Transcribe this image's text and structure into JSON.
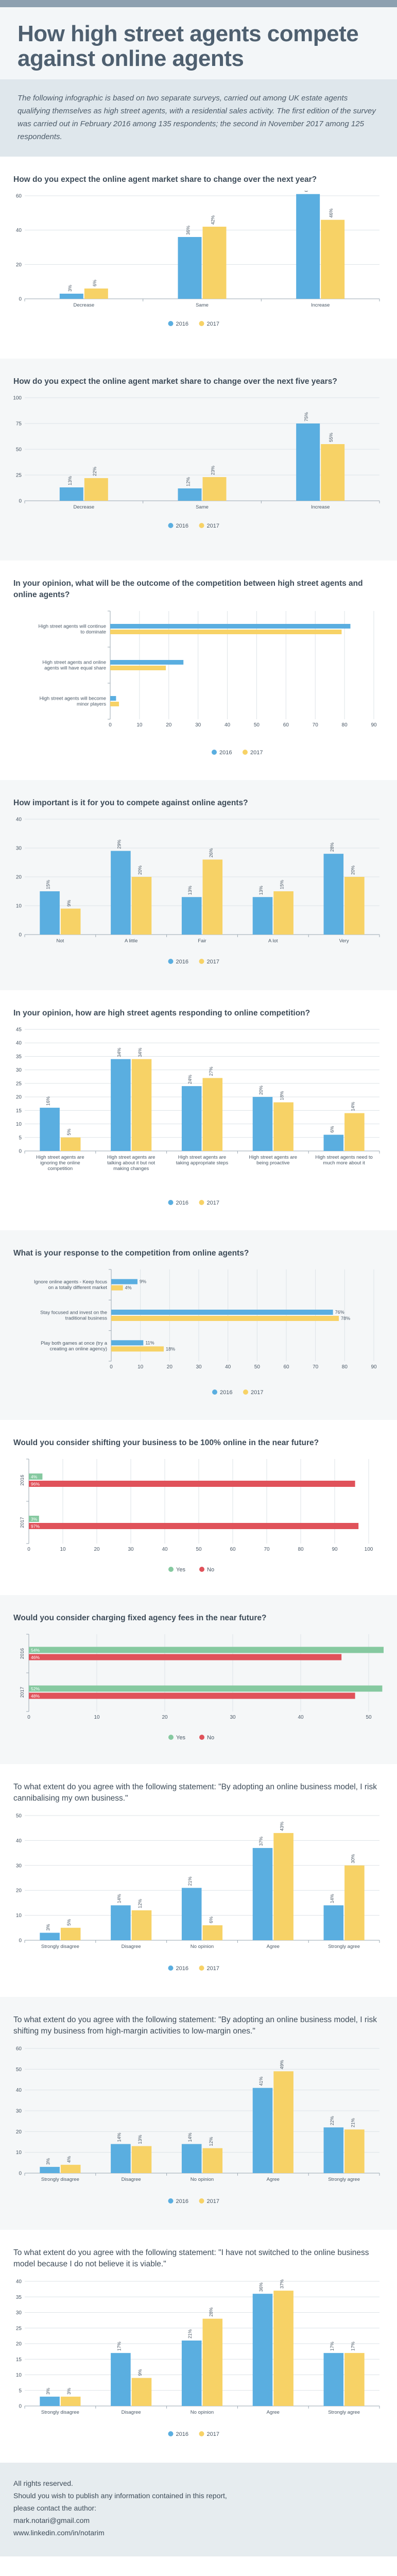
{
  "header": {
    "title": "How high street agents compete against online agents",
    "intro": "The following infographic is based on two separate surveys, carried out among UK estate agents qualifying themselves as high street agents, with a residential sales activity. The first edition of the survey was carried out in February 2016 among 135 respondents; the second in November 2017 among 125 respondents."
  },
  "legend_labels": {
    "y2016": "2016",
    "y2017": "2017",
    "yes": "Yes",
    "no": "No"
  },
  "colors": {
    "y2016": "#5aaee0",
    "y2017": "#f7d266",
    "yes": "#86c9a0",
    "no": "#e0525a",
    "grid": "#dde3e7",
    "axis": "#9aa7b2",
    "text": "#4a5866"
  },
  "footer": {
    "lines": [
      "All rights reserved.",
      "Should you wish to publish any information contained in this report,",
      "please contact the author:",
      "mark.notari@gmail.com",
      "www.linkedin.com/in/notarim"
    ]
  },
  "chart_data": [
    {
      "type": "bar",
      "title": "How do you expect the online agent market share to change over the next year?",
      "categories": [
        "Decrease",
        "Same",
        "Increase"
      ],
      "series": [
        {
          "name": "2016",
          "values": [
            3,
            36,
            61
          ]
        },
        {
          "name": "2017",
          "values": [
            6,
            42,
            46
          ]
        }
      ],
      "labels": [
        [
          "3%",
          "36%",
          "61%"
        ],
        [
          "6%",
          "42%",
          "46%"
        ]
      ],
      "ylim": [
        0,
        60
      ],
      "yticks": [
        0,
        20,
        40,
        60
      ]
    },
    {
      "type": "bar",
      "title": "How do you expect the online agent market share to change over the next five years?",
      "categories": [
        "Decrease",
        "Same",
        "Increase"
      ],
      "series": [
        {
          "name": "2016",
          "values": [
            13,
            12,
            75
          ]
        },
        {
          "name": "2017",
          "values": [
            22,
            23,
            55
          ]
        }
      ],
      "labels": [
        [
          "13%",
          "12%",
          "75%"
        ],
        [
          "22%",
          "23%",
          "55%"
        ]
      ],
      "ylim": [
        0,
        100
      ],
      "yticks": [
        0,
        25,
        50,
        75,
        100
      ]
    },
    {
      "type": "hbar",
      "title": "In your opinion, what will be the outcome of the competition between high street agents and online agents?",
      "categories": [
        "High street agents will continue to dominate",
        "High street agents and online agents will have equal share",
        "High street agents will become minor players"
      ],
      "series": [
        {
          "name": "2016",
          "values": [
            82,
            25,
            2
          ]
        },
        {
          "name": "2017",
          "values": [
            79,
            19,
            3
          ]
        }
      ],
      "xlim": [
        0,
        90
      ],
      "xticks": [
        0,
        10,
        20,
        30,
        40,
        50,
        60,
        70,
        80,
        90
      ]
    },
    {
      "type": "bar",
      "title": "How important is it for you to compete against online agents?",
      "categories": [
        "Not",
        "A little",
        "Fair",
        "A lot",
        "Very"
      ],
      "series": [
        {
          "name": "2016",
          "values": [
            15,
            29,
            13,
            13,
            28
          ]
        },
        {
          "name": "2017",
          "values": [
            9,
            20,
            26,
            15,
            20
          ]
        }
      ],
      "labels": [
        [
          "15%",
          "29%",
          "13%",
          "13%",
          "28%"
        ],
        [
          "9%",
          "20%",
          "26%",
          "15%",
          "20%"
        ]
      ],
      "ylim": [
        0,
        40
      ],
      "yticks": [
        0,
        10,
        20,
        30,
        40
      ]
    },
    {
      "type": "bar",
      "title": "In your opinion, how are high street agents responding to online competition?",
      "categories": [
        "High street agents are ignoring the online competition",
        "High street agents are talking about it but not making changes",
        "High street agents are taking appropriate steps",
        "High street agents are being proactive",
        "High street agents need to much more about it"
      ],
      "series": [
        {
          "name": "2016",
          "values": [
            16,
            34,
            24,
            20,
            6
          ]
        },
        {
          "name": "2017",
          "values": [
            5,
            34,
            27,
            18,
            14
          ]
        }
      ],
      "labels": [
        [
          "16%",
          "34%",
          "24%",
          "20%",
          "6%"
        ],
        [
          "5%",
          "34%",
          "27%",
          "18%",
          "14%"
        ]
      ],
      "ylim": [
        0,
        45
      ],
      "yticks": [
        0,
        5,
        10,
        15,
        20,
        25,
        30,
        35,
        40,
        45
      ]
    },
    {
      "type": "hbar",
      "title": "What is your response to the competition from online agents?",
      "categories": [
        "Ignore online agents - Keep focus on a totally different market",
        "Stay focused and invest on the traditional business",
        "Play both games at once (try a creating an online agency)"
      ],
      "series": [
        {
          "name": "2016",
          "values": [
            9,
            76,
            11
          ]
        },
        {
          "name": "2017",
          "values": [
            4,
            78,
            18
          ]
        }
      ],
      "labels": [
        [
          "9%",
          "76%",
          "11%"
        ],
        [
          "4%",
          "78%",
          "18%"
        ]
      ],
      "xlim": [
        0,
        90
      ],
      "xticks": [
        0,
        10,
        20,
        30,
        40,
        50,
        60,
        70,
        80,
        90
      ]
    },
    {
      "type": "hbar",
      "title": "Would you consider shifting your business to be 100% online in the near future?",
      "categories": [
        "2016",
        "2017"
      ],
      "series": [
        {
          "name": "Yes",
          "values": [
            4,
            3
          ]
        },
        {
          "name": "No",
          "values": [
            96,
            97
          ]
        }
      ],
      "labels": [
        [
          "4%",
          "3%"
        ],
        [
          "96%",
          "97%"
        ]
      ],
      "xlim": [
        0,
        100
      ],
      "xticks": [
        0,
        10,
        20,
        30,
        40,
        50,
        60,
        70,
        80,
        90,
        100
      ]
    },
    {
      "type": "hbar",
      "title": "Would you consider charging fixed agency fees in the near future?",
      "categories": [
        "2016",
        "2017"
      ],
      "series": [
        {
          "name": "Yes",
          "values": [
            54,
            52
          ]
        },
        {
          "name": "No",
          "values": [
            46,
            48
          ]
        }
      ],
      "labels": [
        [
          "54%",
          "52%"
        ],
        [
          "46%",
          "48%"
        ]
      ],
      "xlim": [
        0,
        50
      ],
      "xticks": [
        0,
        10,
        20,
        30,
        40,
        50
      ]
    },
    {
      "type": "bar",
      "title": "To what extent do you agree with the following statement: \"By adopting an online business model, I risk cannibalising my own business.\"",
      "categories": [
        "Strongly disagree",
        "Disagree",
        "No opinion",
        "Agree",
        "Strongly agree"
      ],
      "series": [
        {
          "name": "2016",
          "values": [
            3,
            14,
            21,
            37,
            14
          ]
        },
        {
          "name": "2017",
          "values": [
            5,
            12,
            6,
            43,
            30
          ]
        }
      ],
      "labels": [
        [
          "3%",
          "14%",
          "21%",
          "37%",
          "14%"
        ],
        [
          "5%",
          "12%",
          "6%",
          "43%",
          "30%"
        ]
      ],
      "ylim": [
        0,
        50
      ],
      "yticks": [
        0,
        10,
        20,
        30,
        40,
        50
      ]
    },
    {
      "type": "bar",
      "title": "To what extent do you agree with the following statement: \"By adopting an online business model, I risk shifting my business from high-margin activities to low-margin ones.\"",
      "categories": [
        "Strongly disagree",
        "Disagree",
        "No opinion",
        "Agree",
        "Strongly agree"
      ],
      "series": [
        {
          "name": "2016",
          "values": [
            3,
            14,
            14,
            41,
            22
          ]
        },
        {
          "name": "2017",
          "values": [
            4,
            13,
            12,
            49,
            21
          ]
        }
      ],
      "labels": [
        [
          "3%",
          "14%",
          "14%",
          "41%",
          "22%"
        ],
        [
          "4%",
          "13%",
          "12%",
          "49%",
          "21%"
        ]
      ],
      "ylim": [
        0,
        60
      ],
      "yticks": [
        0,
        10,
        20,
        30,
        40,
        50,
        60
      ]
    },
    {
      "type": "bar",
      "title": "To what extent do you agree with the following statement: \"I have not switched to the online business model because I do not believe it is viable.\"",
      "categories": [
        "Strongly disagree",
        "Disagree",
        "No opinion",
        "Agree",
        "Strongly agree"
      ],
      "series": [
        {
          "name": "2016",
          "values": [
            3,
            17,
            21,
            36,
            17
          ]
        },
        {
          "name": "2017",
          "values": [
            3,
            9,
            28,
            37,
            17
          ]
        }
      ],
      "labels": [
        [
          "3%",
          "17%",
          "21%",
          "36%",
          "17%"
        ],
        [
          "3%",
          "9%",
          "28%",
          "37%",
          "17%"
        ]
      ],
      "ylim": [
        0,
        40
      ],
      "yticks": [
        0,
        5,
        10,
        15,
        20,
        25,
        30,
        35,
        40
      ]
    }
  ]
}
